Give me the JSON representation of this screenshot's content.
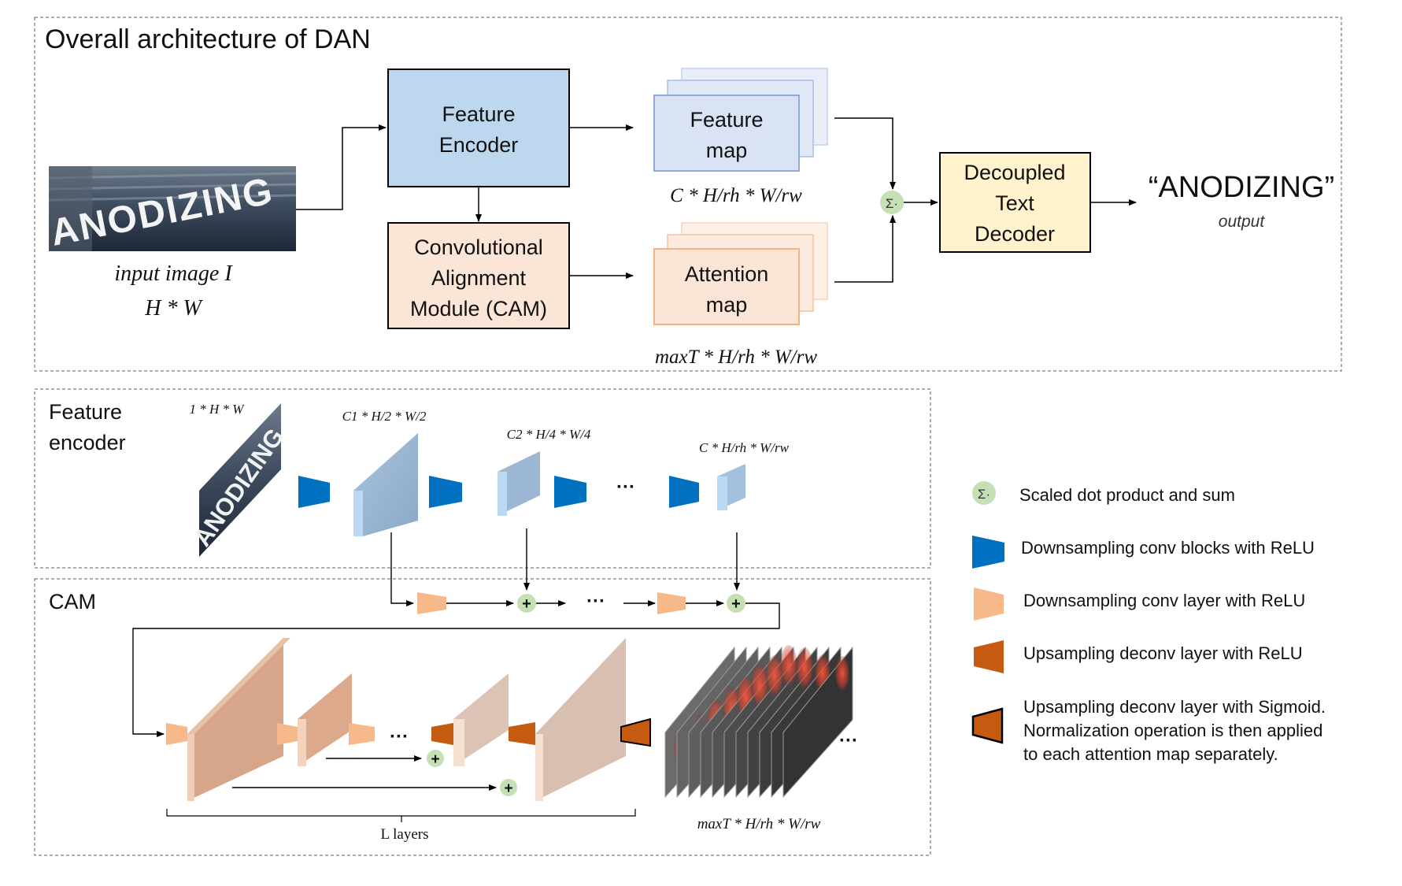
{
  "overall": {
    "title": "Overall architecture of DAN",
    "input_caption": "input image I",
    "input_size": "H * W",
    "input_word": "ANODIZING",
    "encoder_line1": "Feature",
    "encoder_line2": "Encoder",
    "cam_line1": "Convolutional",
    "cam_line2": "Alignment",
    "cam_line3": "Module (CAM)",
    "feature_map_line1": "Feature",
    "feature_map_line2": "map",
    "feature_map_dims": "C * H/rh * W/rw",
    "attention_map_line1": "Attention",
    "attention_map_line2": "map",
    "attention_map_dims": "maxT * H/rh * W/rw",
    "sum_symbol": "Σ·",
    "decoder_line1": "Decoupled",
    "decoder_line2": "Text",
    "decoder_line3": "Decoder",
    "output_text": "“ANODIZING”",
    "output_caption": "output"
  },
  "encoder_panel": {
    "title_line1": "Feature",
    "title_line2": "encoder",
    "input_word": "ANODIZING",
    "dim_input": "1 * H * W",
    "dim_stage1": "C1 * H/2 * W/2",
    "dim_stage2": "C2 * H/4 * W/4",
    "dim_final": "C * H/rh * W/rw",
    "ellipsis": "···"
  },
  "cam_panel": {
    "title": "CAM",
    "plus": "+",
    "ellipsis": "···",
    "layers_label": "L layers",
    "output_dims": "maxT * H/rh * W/rw"
  },
  "legend": {
    "items": [
      {
        "icon": "scaled-dot-product-icon",
        "text": "Scaled dot product and sum"
      },
      {
        "icon": "downsampling-conv-block-icon",
        "text": "Downsampling conv blocks with ReLU"
      },
      {
        "icon": "downsampling-conv-layer-icon",
        "text": "Downsampling conv layer with ReLU"
      },
      {
        "icon": "upsampling-deconv-relu-icon",
        "text": "Upsampling deconv layer with ReLU"
      },
      {
        "icon": "upsampling-deconv-sigmoid-icon",
        "text": "Upsampling deconv layer with Sigmoid."
      },
      {
        "icon": "",
        "text": "Normalization operation is then applied"
      },
      {
        "icon": "",
        "text": "to each attention map separately."
      }
    ]
  },
  "colors": {
    "encoder_fill": "#bdd7ee",
    "cam_fill": "#fbe5d6",
    "decoder_fill": "#fff2cc",
    "feature_map_fill": "#dae3f3",
    "feature_map_stroke": "#8faadc",
    "attention_map_fill": "#fbe5d6",
    "attention_map_stroke": "#f4b183",
    "sum_fill": "#c5e0b4",
    "downsample_block": "#0070c0",
    "downsample_layer": "#f8b98a",
    "upsample_relu": "#c55a11",
    "panel_border": "#7f7f7f"
  }
}
